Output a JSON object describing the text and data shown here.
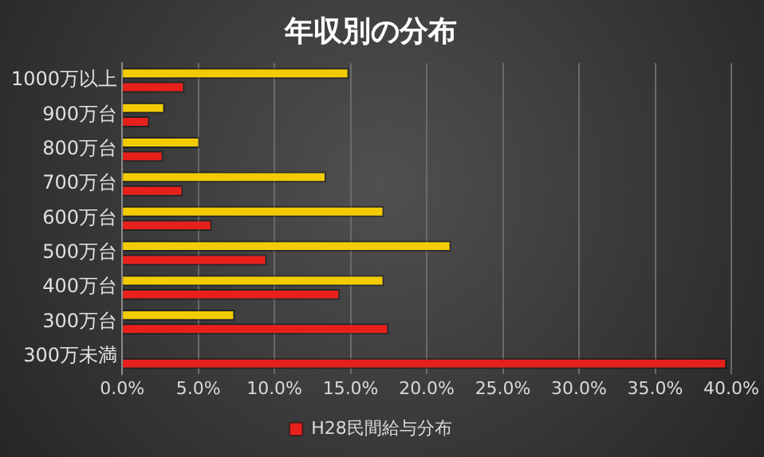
{
  "chart_data": {
    "type": "bar",
    "orientation": "horizontal",
    "title": "年収別の分布",
    "categories": [
      "1000万以上",
      "900万台",
      "800万台",
      "700万台",
      "600万台",
      "500万台",
      "400万台",
      "300万台",
      "300万未満"
    ],
    "series": [
      {
        "color": "#f2cc00",
        "values": [
          14.9,
          2.8,
          5.1,
          13.4,
          17.2,
          21.6,
          17.2,
          7.4,
          null
        ]
      },
      {
        "name": "H28民間給与分布",
        "color": "#e8201c",
        "values": [
          4.1,
          1.8,
          2.7,
          4.0,
          5.9,
          9.5,
          14.3,
          17.5,
          39.7
        ]
      }
    ],
    "xlim": [
      0,
      40
    ],
    "xticks": [
      {
        "value": 0,
        "label": "0.0%"
      },
      {
        "value": 5,
        "label": "5.0%"
      },
      {
        "value": 10,
        "label": "10.0%"
      },
      {
        "value": 15,
        "label": "15.0%"
      },
      {
        "value": 20,
        "label": "20.0%"
      },
      {
        "value": 25,
        "label": "25.0%"
      },
      {
        "value": 30,
        "label": "30.0%"
      },
      {
        "value": 35,
        "label": "35.0%"
      },
      {
        "value": 40,
        "label": "40.0%"
      }
    ],
    "grid": "x",
    "legend": "bottom"
  }
}
